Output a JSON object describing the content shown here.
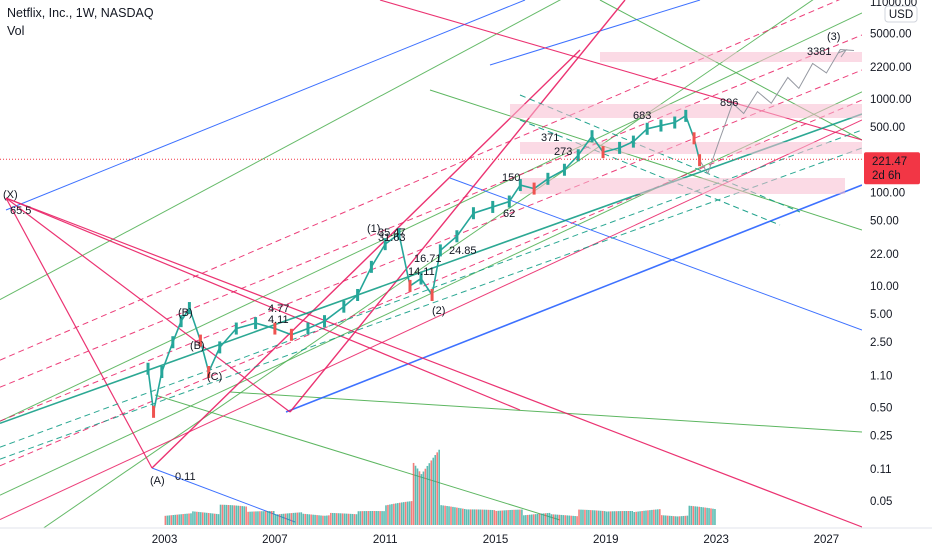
{
  "header": {
    "symbol_line": "Netflix, Inc., 1W, NASDAQ",
    "indicator": "Vol"
  },
  "colors": {
    "pink": "#e91e63",
    "green": "#4caf50",
    "blue": "#2962ff",
    "teal": "#089981",
    "zone": "#f8bbd0",
    "last_price": "#f23645",
    "vol_up": "#26a69a",
    "vol_down": "#ef5350"
  },
  "chart_data": {
    "type": "line",
    "title": "Netflix, Inc., 1W, NASDAQ",
    "xlabel": "",
    "ylabel": "",
    "y_scale": "log",
    "currency": "USD",
    "x_ticks": [
      "2003",
      "2007",
      "2011",
      "2015",
      "2019",
      "2023",
      "2027"
    ],
    "y_ticks": [
      "11000.00",
      "5000.00",
      "2200.00",
      "1000.00",
      "500.00",
      "221.47",
      "100.00",
      "50.00",
      "22.00",
      "10.00",
      "5.00",
      "2.50",
      "1.10",
      "0.50",
      "0.25",
      "0.11",
      "0.05"
    ],
    "last_price": {
      "value": "221.47",
      "countdown": "2d 6h"
    },
    "price_series": {
      "name": "NFLX",
      "x": [
        2002.4,
        2002.6,
        2002.9,
        2003.3,
        2003.6,
        2003.9,
        2004.3,
        2004.6,
        2005.0,
        2005.6,
        2006.3,
        2007.0,
        2007.6,
        2008.2,
        2008.8,
        2009.5,
        2010.0,
        2010.5,
        2011.0,
        2011.5,
        2011.9,
        2012.3,
        2012.7,
        2013.0,
        2013.6,
        2014.2,
        2014.9,
        2015.5,
        2015.9,
        2016.4,
        2016.9,
        2017.5,
        2018.0,
        2018.5,
        2018.9,
        2019.5,
        2020.0,
        2020.5,
        2021.0,
        2021.5,
        2021.9,
        2022.2,
        2022.4
      ],
      "y": [
        1.3,
        0.45,
        1.2,
        2.5,
        4.2,
        5.8,
        2.6,
        1.2,
        2.2,
        3.5,
        4.0,
        3.5,
        3.0,
        3.5,
        4.2,
        6.0,
        8.0,
        16.0,
        28.0,
        36.0,
        10.0,
        12.0,
        8.0,
        24.0,
        34.0,
        60.0,
        70.0,
        80.0,
        120.0,
        110.0,
        140.0,
        175.0,
        250.0,
        400.0,
        270.0,
        300.0,
        350.0,
        480.0,
        520.0,
        560.0,
        660.0,
        380.0,
        221.47
      ]
    },
    "wave_labels": [
      "(X)",
      "65.5",
      "(A)",
      "0.11",
      "(B)",
      "(B)",
      "(C)",
      "4.77",
      "4.11",
      "(1)",
      "35.47",
      "31.63",
      "16.71",
      "14.11",
      "24.85",
      "(2)",
      "150",
      "62",
      "371",
      "273",
      "683",
      "896",
      "3381",
      "(3)"
    ],
    "projection": {
      "x": [
        2022.4,
        2022.7,
        2023.1,
        2023.6,
        2024.0,
        2024.5,
        2025.0,
        2025.6,
        2026.0,
        2026.5,
        2027.0,
        2027.5,
        2028.0
      ],
      "y": [
        221.47,
        160,
        350,
        900,
        700,
        1200,
        900,
        1700,
        1300,
        2400,
        1900,
        3381,
        3300
      ]
    },
    "volume": {
      "x": [
        2003,
        2004,
        2005,
        2006,
        2007,
        2008,
        2009,
        2010,
        2011,
        2012,
        2013,
        2014,
        2015,
        2016,
        2017,
        2018,
        2019,
        2020,
        2021,
        2022
      ],
      "values": [
        0.05,
        0.06,
        0.09,
        0.05,
        0.05,
        0.05,
        0.04,
        0.05,
        0.12,
        0.7,
        0.1,
        0.06,
        0.06,
        0.05,
        0.04,
        0.06,
        0.05,
        0.07,
        0.04,
        0.09
      ]
    }
  }
}
